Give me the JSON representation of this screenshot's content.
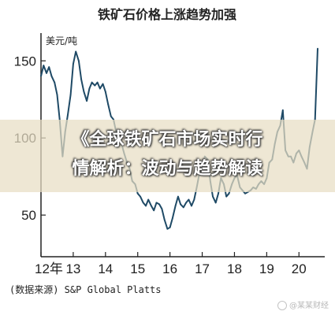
{
  "chart_data": {
    "type": "line",
    "title": "铁矿石价格上涨趋势加强",
    "unit_label": "美元/吨",
    "source": "(数据来源) S&P Global Platts",
    "xlabel": "",
    "ylabel": "",
    "x_ticks": [
      "12年",
      "13",
      "14",
      "15",
      "16",
      "17",
      "18",
      "19",
      "20"
    ],
    "y_ticks": [
      150,
      100,
      50
    ],
    "xlim": [
      2012,
      2020.8
    ],
    "ylim": [
      23,
      168
    ],
    "grid": false,
    "legend": "none",
    "line_color": "#1f4a66",
    "series": [
      {
        "name": "",
        "x": [
          2012.0,
          2012.08,
          2012.17,
          2012.25,
          2012.33,
          2012.42,
          2012.5,
          2012.58,
          2012.67,
          2012.75,
          2012.83,
          2012.92,
          2013.0,
          2013.08,
          2013.17,
          2013.25,
          2013.33,
          2013.42,
          2013.5,
          2013.58,
          2013.67,
          2013.75,
          2013.83,
          2013.92,
          2014.0,
          2014.08,
          2014.17,
          2014.25,
          2014.33,
          2014.42,
          2014.5,
          2014.58,
          2014.67,
          2014.75,
          2014.83,
          2014.92,
          2015.0,
          2015.08,
          2015.17,
          2015.25,
          2015.33,
          2015.42,
          2015.5,
          2015.58,
          2015.67,
          2015.75,
          2015.83,
          2015.92,
          2016.0,
          2016.08,
          2016.17,
          2016.25,
          2016.33,
          2016.42,
          2016.5,
          2016.58,
          2016.67,
          2016.75,
          2016.83,
          2016.92,
          2017.0,
          2017.08,
          2017.17,
          2017.25,
          2017.33,
          2017.42,
          2017.5,
          2017.58,
          2017.67,
          2017.75,
          2017.83,
          2017.92,
          2018.0,
          2018.08,
          2018.17,
          2018.25,
          2018.33,
          2018.42,
          2018.5,
          2018.58,
          2018.67,
          2018.75,
          2018.83,
          2018.92,
          2019.0,
          2019.08,
          2019.17,
          2019.25,
          2019.33,
          2019.42,
          2019.5,
          2019.58,
          2019.67,
          2019.75,
          2019.83,
          2019.92,
          2020.0,
          2020.08,
          2020.17,
          2020.25,
          2020.33,
          2020.42,
          2020.5,
          2020.58
        ],
        "y": [
          140,
          147,
          142,
          146,
          140,
          136,
          128,
          112,
          88,
          104,
          115,
          128,
          148,
          156,
          150,
          138,
          130,
          124,
          132,
          136,
          134,
          136,
          132,
          135,
          130,
          122,
          114,
          112,
          104,
          98,
          96,
          90,
          84,
          80,
          72,
          70,
          64,
          62,
          58,
          56,
          60,
          56,
          53,
          58,
          57,
          54,
          47,
          41,
          42,
          48,
          56,
          62,
          57,
          55,
          58,
          60,
          56,
          60,
          68,
          78,
          80,
          88,
          86,
          72,
          62,
          58,
          64,
          74,
          70,
          62,
          64,
          70,
          74,
          76,
          68,
          66,
          64,
          65,
          66,
          68,
          67,
          70,
          72,
          70,
          74,
          84,
          86,
          96,
          104,
          108,
          118,
          92,
          88,
          88,
          84,
          90,
          92,
          88,
          84,
          80,
          94,
          104,
          112,
          158
        ]
      }
    ]
  },
  "overlay": {
    "line1": "《全球铁矿石市场实时行",
    "line2": "情解析：波动与趋势解读"
  },
  "watermark": "@某某财经"
}
